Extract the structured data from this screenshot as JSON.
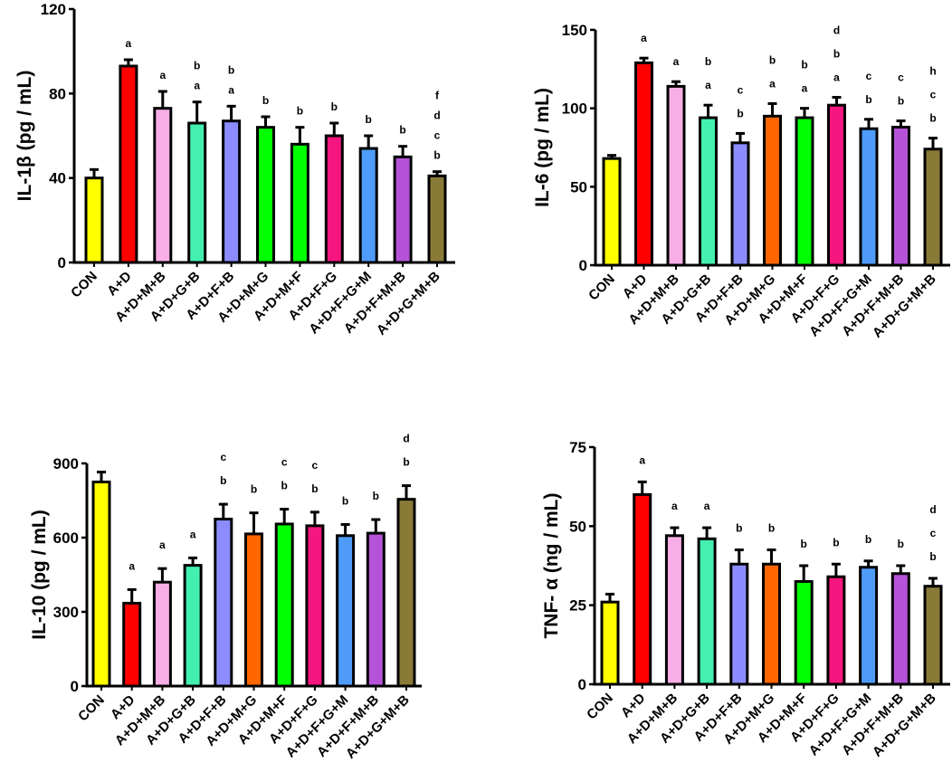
{
  "chart_data": [
    {
      "type": "bar",
      "title": "",
      "ylabel": "IL-1β  (pg / mL)",
      "xlabel": "",
      "ylim": [
        0,
        120
      ],
      "yticks": [
        0,
        40,
        80,
        120
      ],
      "categories": [
        "CON",
        "A+D",
        "A+D+M+B",
        "A+D+G+B",
        "A+D+F+B",
        "A+D+M+G",
        "A+D+M+F",
        "A+D+F+G",
        "A+D+F+G+M",
        "A+D+F+M+B",
        "A+D+G+M+B"
      ],
      "values": [
        40,
        93,
        73,
        66,
        67,
        64,
        56,
        60,
        54,
        50,
        41
      ],
      "errors": [
        4,
        3,
        8,
        10,
        7,
        5,
        8,
        6,
        6,
        5,
        2
      ],
      "colors": [
        "#ffff00",
        "#ff0000",
        "#f7aee6",
        "#44f0b0",
        "#8c8cff",
        "#00ff00",
        "#00ff00",
        "#f5167f",
        "#4f9bf8",
        "#b553d8",
        "#8a7a38"
      ],
      "significance": [
        [],
        [
          "a"
        ],
        [
          "a"
        ],
        [
          "a",
          "b"
        ],
        [
          "a",
          "b"
        ],
        [
          "b"
        ],
        [
          "b"
        ],
        [
          "b"
        ],
        [
          "b"
        ],
        [
          "b"
        ],
        [
          "b",
          "c",
          "d",
          "f"
        ]
      ]
    },
    {
      "type": "bar",
      "title": "",
      "ylabel": "IL-6  (pg / mL)",
      "xlabel": "",
      "ylim": [
        0,
        150
      ],
      "yticks": [
        0,
        50,
        100,
        150
      ],
      "categories": [
        "CON",
        "A+D",
        "A+D+M+B",
        "A+D+G+B",
        "A+D+F+B",
        "A+D+M+G",
        "A+D+M+F",
        "A+D+F+G",
        "A+D+F+G+M",
        "A+D+F+M+B",
        "A+D+G+M+B"
      ],
      "values": [
        68,
        129,
        114,
        94,
        78,
        95,
        94,
        102,
        87,
        88,
        74
      ],
      "errors": [
        2,
        3,
        3,
        8,
        6,
        8,
        6,
        5,
        6,
        4,
        7
      ],
      "colors": [
        "#ffff00",
        "#ff0000",
        "#f7aee6",
        "#44f0b0",
        "#8c8cff",
        "#ff6600",
        "#00ff00",
        "#f5167f",
        "#4f9bf8",
        "#b553d8",
        "#8a7a38"
      ],
      "significance": [
        [],
        [
          "a"
        ],
        [
          "a"
        ],
        [
          "a",
          "b"
        ],
        [
          "b",
          "c"
        ],
        [
          "a",
          "b"
        ],
        [
          "a",
          "b"
        ],
        [
          "a",
          "b",
          "d"
        ],
        [
          "b",
          "c"
        ],
        [
          "b",
          "c"
        ],
        [
          "b",
          "c",
          "h"
        ]
      ]
    },
    {
      "type": "bar",
      "title": "",
      "ylabel": "IL-10 (pg / mL)",
      "xlabel": "",
      "ylim": [
        0,
        900
      ],
      "yticks": [
        0,
        300,
        600,
        900
      ],
      "categories": [
        "CON",
        "A+D",
        "A+D+M+B",
        "A+D+G+B",
        "A+D+F+B",
        "A+D+M+G",
        "A+D+M+F",
        "A+D+F+G",
        "A+D+F+G+M",
        "A+D+F+M+B",
        "A+D+G+M+B"
      ],
      "values": [
        825,
        335,
        420,
        488,
        675,
        615,
        655,
        648,
        608,
        618,
        755
      ],
      "errors": [
        40,
        55,
        55,
        30,
        60,
        85,
        60,
        55,
        45,
        55,
        55
      ],
      "colors": [
        "#ffff00",
        "#ff0000",
        "#f7aee6",
        "#44f0b0",
        "#8c8cff",
        "#ff6600",
        "#00ff00",
        "#f5167f",
        "#4f9bf8",
        "#b553d8",
        "#8a7a38"
      ],
      "significance": [
        [],
        [
          "a"
        ],
        [
          "a"
        ],
        [
          "a"
        ],
        [
          "b",
          "c"
        ],
        [
          "b"
        ],
        [
          "b",
          "c"
        ],
        [
          "b",
          "c"
        ],
        [
          "b"
        ],
        [
          "b"
        ],
        [
          "b",
          "d"
        ]
      ]
    },
    {
      "type": "bar",
      "title": "",
      "ylabel": "TNF- α (ng / mL)",
      "xlabel": "",
      "ylim": [
        0,
        75
      ],
      "yticks": [
        0,
        25,
        50,
        75
      ],
      "categories": [
        "CON",
        "A+D",
        "A+D+M+B",
        "A+D+G+B",
        "A+D+F+B",
        "A+D+M+G",
        "A+D+M+F",
        "A+D+F+G",
        "A+D+F+G+M",
        "A+D+F+M+B",
        "A+D+G+M+B"
      ],
      "values": [
        26,
        60,
        47,
        46,
        38,
        38,
        32.5,
        34,
        37,
        35,
        31
      ],
      "errors": [
        2.5,
        4,
        2.5,
        3.5,
        4.5,
        4.5,
        5,
        4,
        2,
        2.5,
        2.5
      ],
      "colors": [
        "#ffff00",
        "#ff0000",
        "#f7aee6",
        "#44f0b0",
        "#8c8cff",
        "#ff6600",
        "#00ff00",
        "#f5167f",
        "#4f9bf8",
        "#b553d8",
        "#8a7a38"
      ],
      "significance": [
        [],
        [
          "a"
        ],
        [
          "a"
        ],
        [
          "a"
        ],
        [
          "b"
        ],
        [
          "b"
        ],
        [
          "b"
        ],
        [
          "b"
        ],
        [
          "b"
        ],
        [
          "b"
        ],
        [
          "b",
          "c",
          "d"
        ]
      ]
    }
  ]
}
